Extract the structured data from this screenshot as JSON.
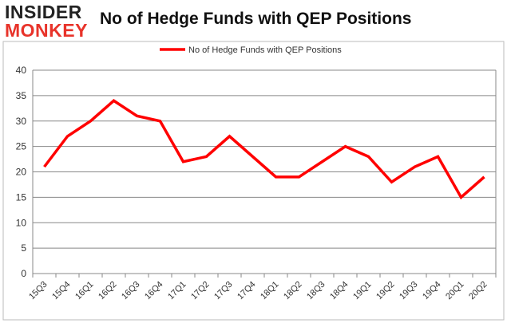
{
  "logo": {
    "line1": "INSIDER",
    "line2": "MONKEY"
  },
  "chart_data": {
    "type": "line",
    "title": "No of Hedge Funds with QEP Positions",
    "categories": [
      "15Q3",
      "15Q4",
      "16Q1",
      "16Q2",
      "16Q3",
      "16Q4",
      "17Q1",
      "17Q2",
      "17Q3",
      "17Q4",
      "18Q1",
      "18Q2",
      "18Q3",
      "18Q4",
      "19Q1",
      "19Q2",
      "19Q3",
      "19Q4",
      "20Q1",
      "20Q2"
    ],
    "series": [
      {
        "name": "No of Hedge Funds with QEP Positions",
        "color": "#ff0000",
        "values": [
          21,
          27,
          30,
          34,
          31,
          30,
          22,
          23,
          27,
          23,
          19,
          19,
          22,
          25,
          23,
          18,
          21,
          23,
          15,
          19
        ]
      }
    ],
    "ylim": [
      0,
      40
    ],
    "yticks": [
      0,
      5,
      10,
      15,
      20,
      25,
      30,
      35,
      40
    ],
    "grid": true,
    "legend": "top"
  }
}
